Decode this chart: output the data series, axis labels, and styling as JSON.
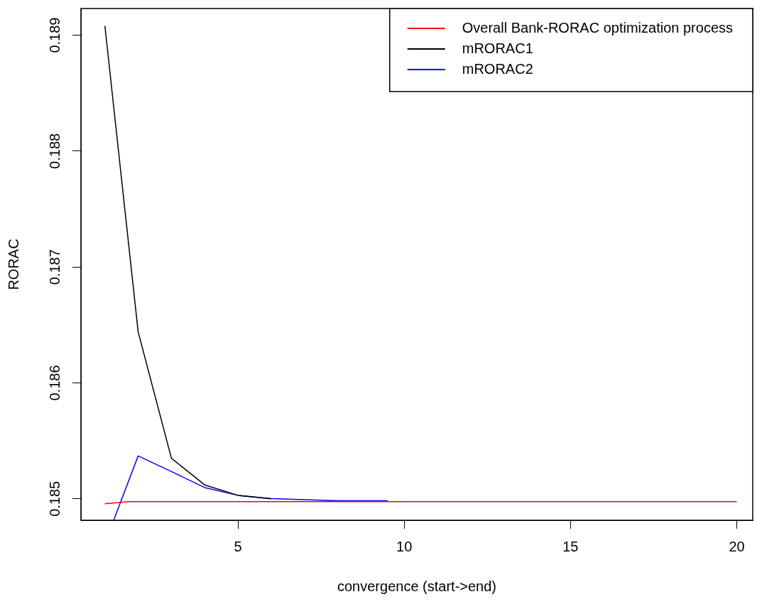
{
  "chart_data": {
    "type": "line",
    "xlabel": "convergence (start->end)",
    "ylabel": "RORAC",
    "xlim": [
      0.28,
      20.48
    ],
    "xticks": [
      5,
      10,
      15,
      20
    ],
    "ylim": [
      0.184815,
      0.18923
    ],
    "yticks": [
      0.185,
      0.186,
      0.187,
      0.188,
      0.189
    ],
    "grid": false,
    "legend": "top right",
    "marker": "none",
    "line_style": "solid",
    "series": [
      {
        "name": "Overall Bank-RORAC optimization process",
        "color": "#ff0000",
        "x": [
          1,
          1.75,
          20
        ],
        "values": [
          0.184957,
          0.184975,
          0.184975
        ]
      },
      {
        "name": "mRORAC1",
        "color": "#000000",
        "x": [
          1,
          2,
          3,
          4,
          5,
          6
        ],
        "values": [
          0.18908,
          0.18644,
          0.18535,
          0.18512,
          0.18503,
          0.185
        ]
      },
      {
        "name": "mRORAC2",
        "color": "#0000ff",
        "x": [
          1.27,
          2,
          3,
          4,
          5,
          6,
          7,
          8,
          9,
          9.5
        ],
        "values": [
          0.18482,
          0.18537,
          0.185235,
          0.185097,
          0.18503,
          0.185002,
          0.184992,
          0.184983,
          0.184983,
          0.184983
        ]
      }
    ]
  }
}
